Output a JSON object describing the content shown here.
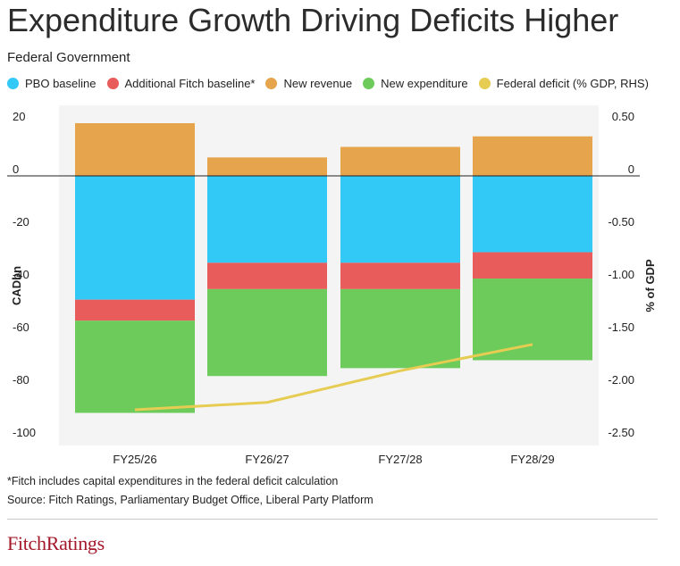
{
  "title": "Expenditure Growth Driving Deficits Higher",
  "subtitle": "Federal Government",
  "footnote": "*Fitch includes capital expenditures in the federal deficit calculation",
  "source": "Source: Fitch Ratings, Parliamentary Budget Office, Liberal Party Platform",
  "logo": {
    "part1": "Fitch",
    "part2": "Ratings"
  },
  "colors": {
    "pbo": "#33c9f7",
    "fitch": "#e85d5b",
    "revenue": "#e6a44c",
    "expenditure": "#6ccb5a",
    "deficit": "#e6cc52"
  },
  "legend": [
    {
      "label": "PBO baseline",
      "color": "#33c9f7"
    },
    {
      "label": "Additional Fitch baseline*",
      "color": "#e85d5b"
    },
    {
      "label": "New revenue",
      "color": "#e6a44c"
    },
    {
      "label": "New expenditure",
      "color": "#6ccb5a"
    },
    {
      "label": "Federal deficit (% GDP, RHS)",
      "color": "#e6cc52"
    }
  ],
  "chart_data": {
    "type": "bar",
    "stacked": true,
    "categories": [
      "FY25/26",
      "FY26/27",
      "FY27/28",
      "FY28/29"
    ],
    "series": [
      {
        "name": "PBO baseline",
        "values": [
          -47,
          -33,
          -33,
          -29
        ]
      },
      {
        "name": "Additional Fitch baseline*",
        "values": [
          -8,
          -10,
          -10,
          -10
        ]
      },
      {
        "name": "New revenue",
        "values": [
          20,
          7,
          11,
          15
        ]
      },
      {
        "name": "New expenditure",
        "values": [
          -35,
          -33,
          -30,
          -31
        ]
      }
    ],
    "line_series": {
      "name": "Federal deficit (% GDP, RHS)",
      "values": [
        -2.22,
        -2.15,
        -1.85,
        -1.6
      ],
      "axis": "right"
    },
    "ylabel": "CADbn",
    "y2label": "% of GDP",
    "ylim": [
      -100,
      20
    ],
    "y2lim": [
      -2.5,
      0.5
    ],
    "yticks": [
      "20",
      "0",
      "-20",
      "-40",
      "-60",
      "-80",
      "-100"
    ],
    "y2ticks": [
      "0.50",
      "0",
      "-0.50",
      "-1.00",
      "-1.50",
      "-2.00",
      "-2.50"
    ]
  }
}
